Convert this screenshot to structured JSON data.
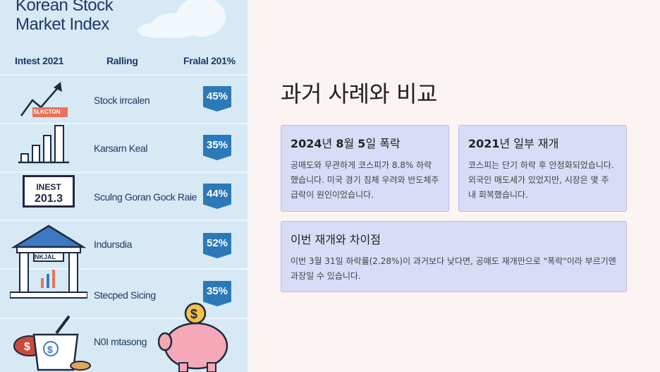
{
  "left_panel": {
    "title_line1": "Korean Stock",
    "title_line2": "Market Index",
    "headers": [
      "Intest 2021",
      "Ralling",
      "Fralal 201%"
    ],
    "rows": [
      {
        "label": "Stock irrcalen",
        "badge": "45%",
        "icon": "trend-arrow-icon",
        "tag": "SLKCTON"
      },
      {
        "label": "Karsarn Keal",
        "badge": "35%",
        "icon": "bar-chart-icon"
      },
      {
        "label": "Sculng Goran Gock Raie",
        "badge": "44%",
        "icon": "index-board-icon",
        "sign_line1": "INEST",
        "sign_line2": "201.3"
      },
      {
        "label": "Indursdia",
        "badge": "52%",
        "icon": "exchange-building-icon",
        "sign": "NKJAL"
      },
      {
        "label": "Stecped Sicing",
        "badge": "35%",
        "icon": "building-chart-icon"
      },
      {
        "label": "N0I mtasong",
        "badge": "",
        "icon": "money-bag-icon"
      }
    ],
    "colors": {
      "panel": "#d6e9f5",
      "badge": "#2b79b9",
      "text": "#1e3a66"
    }
  },
  "main": {
    "heading": "과거 사례와 비교",
    "cards": [
      {
        "title_strong": "2024",
        "title_rest": "년 ",
        "title_strong2": "8",
        "title_rest2": "월 ",
        "title_strong3": "5",
        "title_rest3": "일 폭락",
        "body": "공매도와 무관하게 코스피가 8.8% 하락했습니다. 미국 경기 침체 우려와 반도체주 급락이 원인이었습니다."
      },
      {
        "title_strong": "2021",
        "title_rest": "년 일부 재개",
        "body": "코스피는 단기 하락 후 안정화되었습니다. 외국인 매도세가 있었지만, 시장은 몇 주 내 회복했습니다."
      },
      {
        "title": "이번 재개와 차이점",
        "body": "이번 3월 31일 하락률(2.28%)이 과거보다 낮다면, 공매도 재개만으로 \"폭락\"이라 부르기엔 과장일 수 있습니다."
      }
    ],
    "colors": {
      "background": "#fbf4f3",
      "card": "#d9dcf6",
      "card_border": "#b9bfee"
    }
  }
}
